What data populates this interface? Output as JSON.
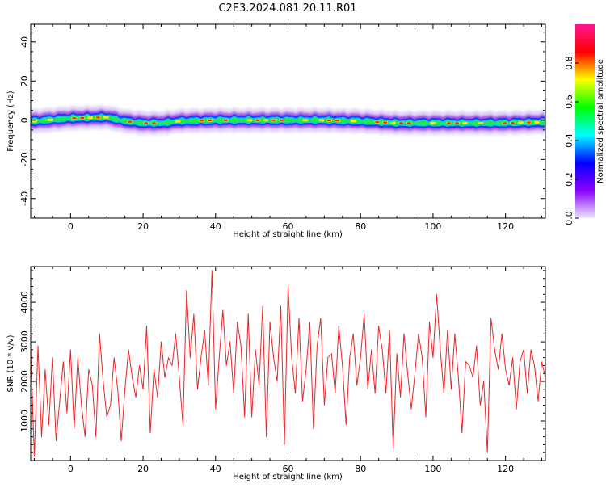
{
  "title": "C2E3.2024.081.20.11.R01",
  "chart_data": [
    {
      "type": "heatmap",
      "title": "C2E3.2024.081.20.11.R01",
      "xlabel": "Height of straight line (km)",
      "ylabel": "Frequency (Hz)",
      "xlim": [
        -11,
        131
      ],
      "ylim": [
        -50,
        49
      ],
      "xticks": [
        0,
        20,
        40,
        60,
        80,
        100,
        120
      ],
      "yticks": [
        -40,
        -20,
        0,
        20,
        40
      ],
      "grid": false,
      "ridge": {
        "x": [
          -10,
          0,
          10,
          15,
          20,
          25,
          30,
          40,
          50,
          60,
          70,
          80,
          90,
          100,
          110,
          120,
          130
        ],
        "y": [
          -0.5,
          1,
          1.5,
          -0.5,
          -1.5,
          -1.5,
          -0.5,
          0,
          0,
          0,
          0,
          -0.5,
          -1.5,
          -1.5,
          -1.5,
          -1.5,
          -1
        ]
      },
      "colorbar": {
        "label": "Normalized spectral amplitude",
        "range": [
          0,
          1
        ],
        "ticks": [
          0.0,
          0.2,
          0.4,
          0.6,
          0.8
        ],
        "colormap": [
          "#e8e8ff",
          "#8b00ff",
          "#0000ff",
          "#00ffff",
          "#00ff00",
          "#ffff00",
          "#ff0000",
          "#ff1493"
        ]
      }
    },
    {
      "type": "line",
      "xlabel": "Height of straight line (km)",
      "ylabel": "SNR (10 * v/v)",
      "xlim": [
        -11,
        131
      ],
      "ylim": [
        0,
        4900
      ],
      "xticks": [
        0,
        20,
        40,
        60,
        80,
        100,
        120
      ],
      "yticks": [
        1000,
        2000,
        3000,
        4000
      ],
      "grid": false,
      "color": "#e8262a",
      "series": [
        {
          "x": [
            -11,
            -10,
            -9,
            -8,
            -7,
            -6,
            -5,
            -4,
            -3,
            -2,
            -1,
            0,
            1,
            2,
            3,
            4,
            5,
            6,
            7,
            8,
            9,
            10,
            11,
            12,
            13,
            14,
            15,
            16,
            17,
            18,
            19,
            20,
            21,
            22,
            23,
            24,
            25,
            26,
            27,
            28,
            29,
            30,
            31,
            32,
            33,
            34,
            35,
            36,
            37,
            38,
            39,
            40,
            41,
            42,
            43,
            44,
            45,
            46,
            47,
            48,
            49,
            50,
            51,
            52,
            53,
            54,
            55,
            56,
            57,
            58,
            59,
            60,
            61,
            62,
            63,
            64,
            65,
            66,
            67,
            68,
            69,
            70,
            71,
            72,
            73,
            74,
            75,
            76,
            77,
            78,
            79,
            80,
            81,
            82,
            83,
            84,
            85,
            86,
            87,
            88,
            89,
            90,
            91,
            92,
            93,
            94,
            95,
            96,
            97,
            98,
            99,
            100,
            101,
            102,
            103,
            104,
            105,
            106,
            107,
            108,
            109,
            110,
            111,
            112,
            113,
            114,
            115,
            116,
            117,
            118,
            119,
            120,
            121,
            122,
            123,
            124,
            125,
            126,
            127,
            128,
            129,
            130,
            131
          ],
          "y": [
            2800,
            100,
            2900,
            600,
            2300,
            900,
            2600,
            500,
            1500,
            2500,
            1200,
            2800,
            800,
            2600,
            1400,
            600,
            2300,
            1900,
            600,
            3200,
            2000,
            1100,
            1400,
            2600,
            1800,
            500,
            1800,
            2800,
            2100,
            1600,
            2400,
            1800,
            3400,
            700,
            2300,
            1600,
            3000,
            2100,
            2600,
            2400,
            3200,
            2100,
            900,
            4300,
            2600,
            3700,
            1800,
            2600,
            3300,
            1900,
            4800,
            1300,
            2600,
            3800,
            2400,
            3000,
            1700,
            3500,
            2900,
            1100,
            3700,
            1100,
            2800,
            1900,
            3900,
            600,
            3500,
            2600,
            2000,
            3900,
            400,
            4400,
            2600,
            1700,
            3600,
            1500,
            2300,
            3500,
            800,
            2900,
            3600,
            1400,
            2600,
            2700,
            1700,
            3400,
            2400,
            900,
            2600,
            3200,
            1900,
            2600,
            3700,
            1800,
            2800,
            1700,
            3400,
            2800,
            1700,
            3300,
            300,
            2700,
            1600,
            3200,
            2200,
            1300,
            2200,
            3200,
            2600,
            1100,
            3500,
            2600,
            4200,
            2800,
            1700,
            3300,
            1800,
            3200,
            2100,
            700,
            2500,
            2400,
            2100,
            2900,
            1400,
            2000,
            200,
            3600,
            2800,
            2300,
            3200,
            2300,
            1900,
            2600,
            1300,
            2500,
            2800,
            1700,
            2800,
            2400,
            1500,
            2500,
            2100
          ]
        }
      ]
    }
  ]
}
